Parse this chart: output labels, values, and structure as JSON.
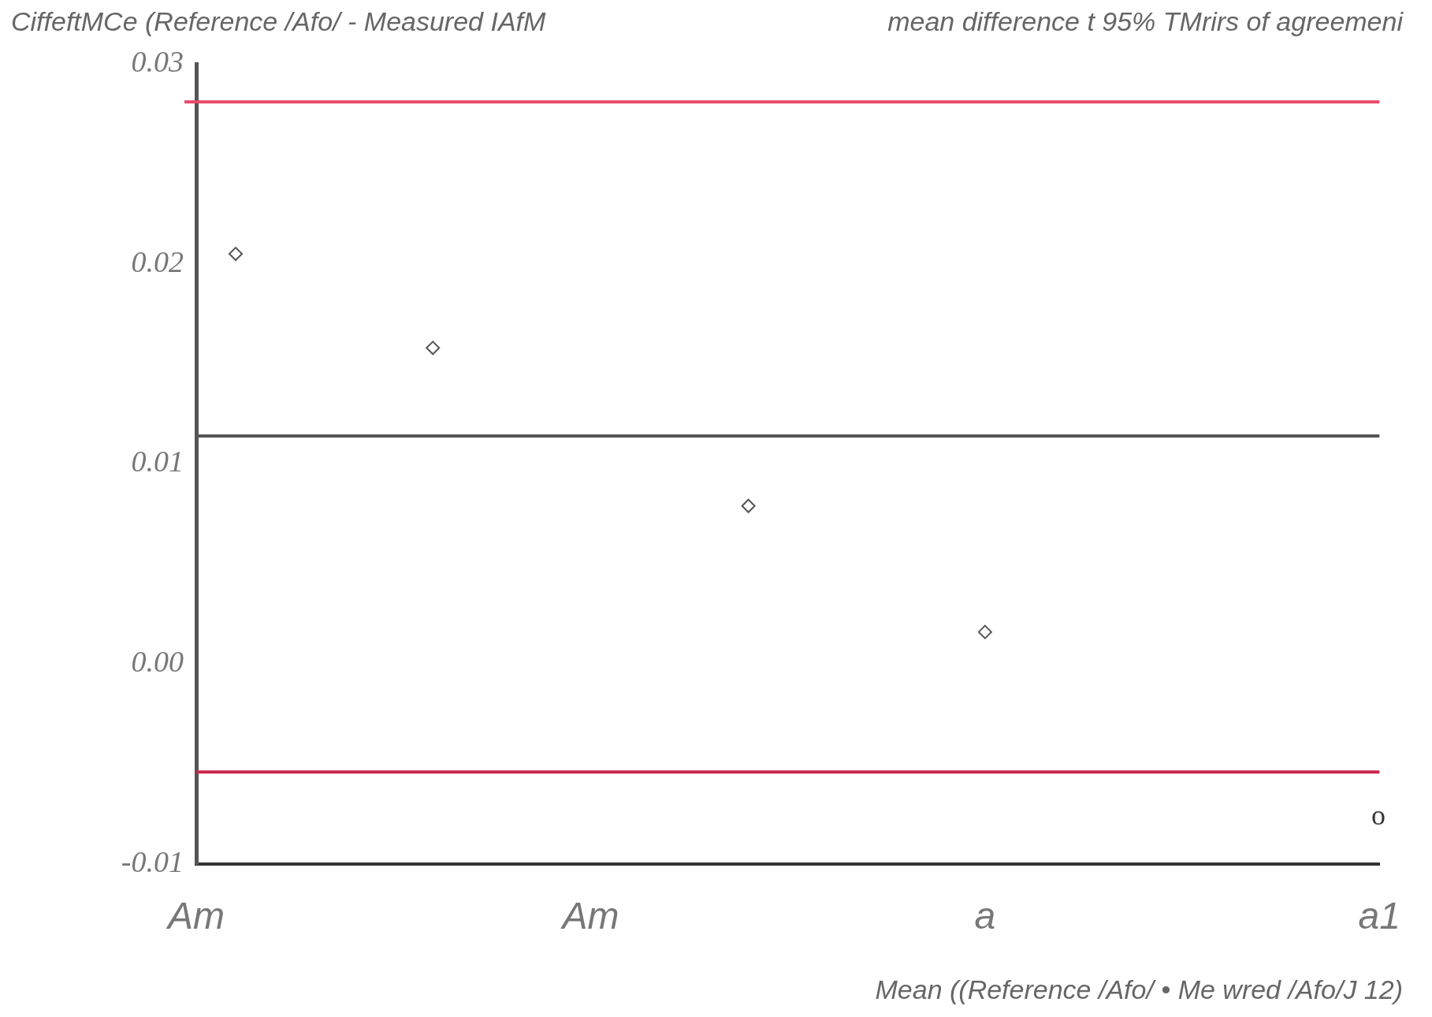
{
  "chart_data": {
    "type": "scatter",
    "ylabel": "CiffeftMCe (Reference /Afo/ - Measured IAfM",
    "subtitle": "mean difference t 95% TMrirs of agreemeni",
    "xlabel": "Mean ((Reference /Afo/ • Me wred /Afo/J 12)",
    "categories": [
      "Am",
      null,
      null,
      null,
      null,
      null,
      null,
      null,
      null,
      null,
      "Am",
      null,
      null,
      null,
      null,
      null,
      null,
      null,
      null,
      null,
      "a",
      null,
      null,
      null,
      null,
      null,
      null,
      null,
      null,
      null,
      "a1"
    ],
    "values": [
      null,
      0.0205,
      null,
      null,
      null,
      null,
      0.0158,
      null,
      null,
      null,
      null,
      null,
      null,
      null,
      0.0079,
      null,
      null,
      null,
      null,
      null,
      0.0016,
      null,
      null,
      null,
      null,
      null,
      null,
      null,
      null,
      null,
      null
    ],
    "color": "#555555",
    "marker": "diamond",
    "ylim": [
      -0.01,
      0.03
    ],
    "yticks": [
      -0.01,
      {
        "value": 0,
        "label": "0.00"
      },
      0.01,
      0.02,
      0.03
    ],
    "ref_lines": [
      {
        "axis": "y",
        "value": 0.0281,
        "color": "#e8476a"
      },
      {
        "axis": "y",
        "value": 0.0114,
        "color": "#555555"
      },
      {
        "axis": "y",
        "value": -0.0054,
        "color": "#c8264a"
      }
    ],
    "annotations": [
      "o"
    ]
  }
}
